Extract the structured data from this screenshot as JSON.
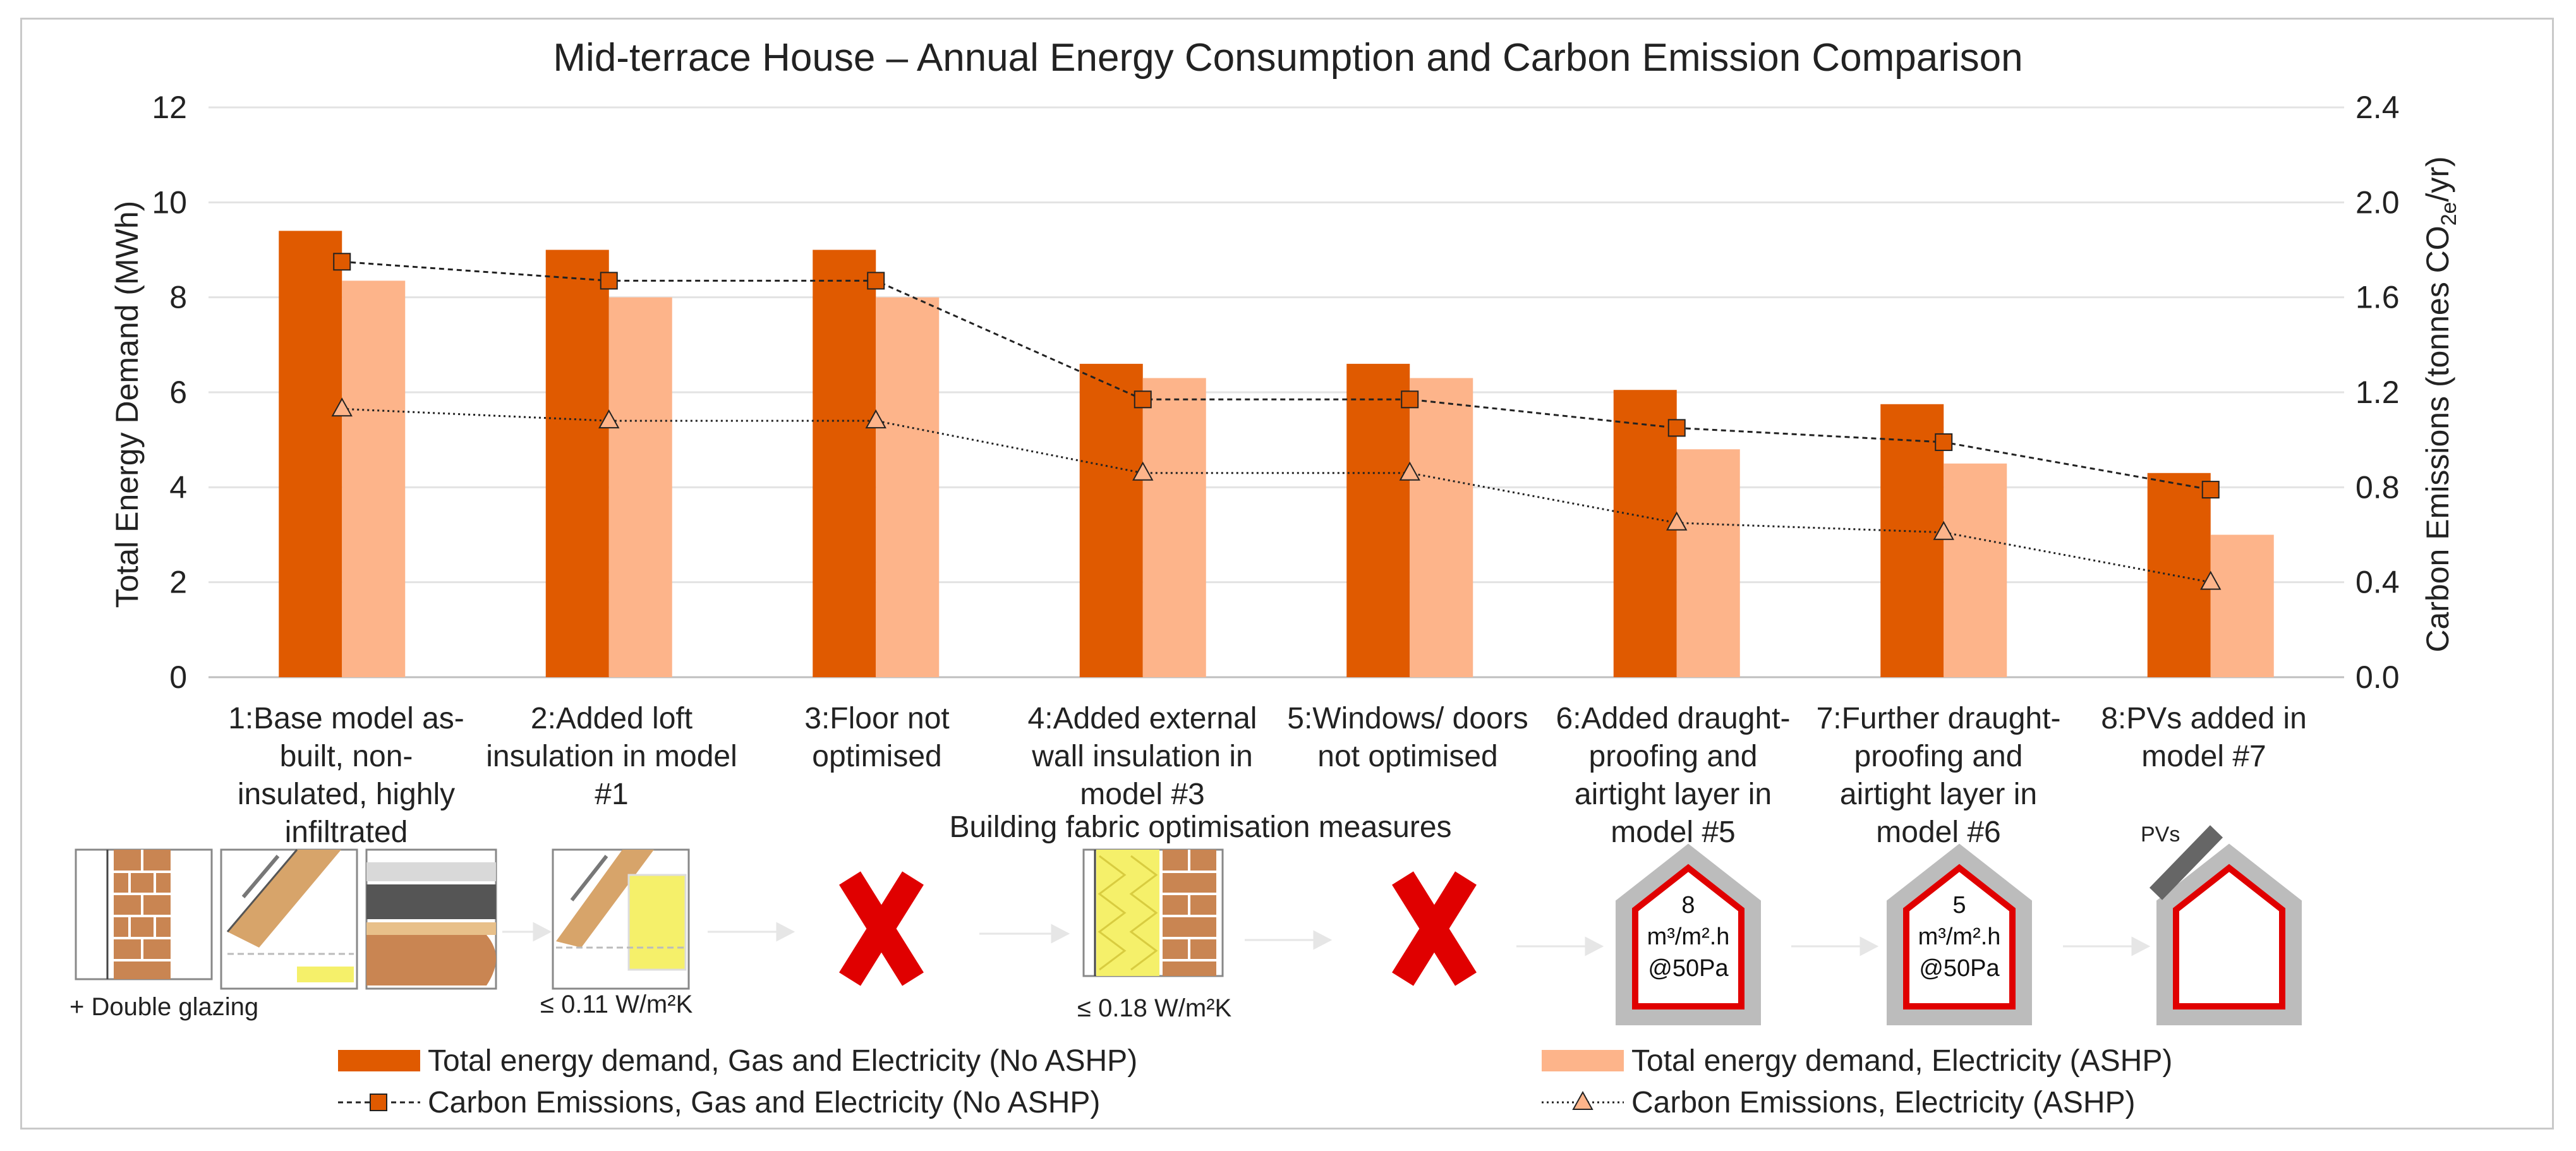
{
  "chart_data": {
    "type": "bar",
    "title": "Mid-terrace House – Annual Energy Consumption and Carbon Emission Comparison",
    "ylabel": "Total Energy Demand (MWh)",
    "y2label": "Carbon Emissions (tonnes CO2e/yr)",
    "ylim": [
      0,
      12
    ],
    "y2lim": [
      0,
      2.4
    ],
    "yticks": [
      "0",
      "2",
      "4",
      "6",
      "8",
      "10",
      "12"
    ],
    "y2ticks": [
      "0.0",
      "0.4",
      "0.8",
      "1.2",
      "1.6",
      "2.0",
      "2.4"
    ],
    "categories": [
      "1:Base model as-built, non-insulated, highly infiltrated",
      "2:Added loft insulation in model #1",
      "3:Floor not optimised",
      "4:Added external wall insulation in model #3",
      "5:Windows/ doors not optimised",
      "6:Added draught-proofing and airtight layer in model #5",
      "7:Further draught-proofing and airtight layer in model #6",
      "8:PVs added in model #7"
    ],
    "series": [
      {
        "name": "Total energy demand, Gas and Electricity (No ASHP)",
        "type": "bar",
        "axis": "left",
        "color": "#e05a00",
        "values": [
          9.4,
          9.0,
          9.0,
          6.6,
          6.6,
          6.05,
          5.75,
          4.3
        ]
      },
      {
        "name": "Total energy demand, Electricity (ASHP)",
        "type": "bar",
        "axis": "left",
        "color": "#fdb48a",
        "values": [
          8.35,
          8.0,
          8.0,
          6.3,
          6.3,
          4.8,
          4.5,
          3.0
        ]
      },
      {
        "name": "Carbon Emissions, Gas and Electricity (No ASHP)",
        "type": "line",
        "axis": "right",
        "marker": "square",
        "color": "#e05a00",
        "values": [
          1.75,
          1.67,
          1.67,
          1.17,
          1.17,
          1.05,
          0.99,
          0.79
        ]
      },
      {
        "name": "Carbon Emissions, Electricity (ASHP)",
        "type": "line",
        "axis": "right",
        "marker": "triangle",
        "color": "#fdb48a",
        "values": [
          1.13,
          1.08,
          1.08,
          0.86,
          0.86,
          0.65,
          0.61,
          0.4
        ]
      }
    ]
  },
  "category_label_lines": [
    [
      "1:Base model as-",
      "built, non-",
      "insulated, highly",
      "infiltrated"
    ],
    [
      "2:Added loft",
      "insulation in model",
      "#1"
    ],
    [
      "3:Floor not",
      "optimised"
    ],
    [
      "4:Added external",
      "wall insulation in",
      "model #3"
    ],
    [
      "5:Windows/ doors",
      "not optimised"
    ],
    [
      "6:Added draught-",
      "proofing and",
      "airtight layer in",
      "model #5"
    ],
    [
      "7:Further draught-",
      "proofing and",
      "airtight layer in",
      "model #6"
    ],
    [
      "8:PVs added in",
      "model #7"
    ]
  ],
  "ylabel_right_parts": {
    "prefix": "Carbon Emissions (tonnes CO",
    "sub": "2e",
    "suffix": "/yr)"
  },
  "measures": {
    "section_title": "Building fabric optimisation measures",
    "double_glazing_label": "+ Double glazing",
    "loft_u_value": "≤ 0.11 W/m²K",
    "wall_u_value": "≤ 0.18 W/m²K",
    "airtight_6_value": "8",
    "airtight_7_value": "5",
    "airtight_unit": "m³/m².h",
    "airtight_pressure": "@50Pa",
    "pv_label": "PVs"
  }
}
